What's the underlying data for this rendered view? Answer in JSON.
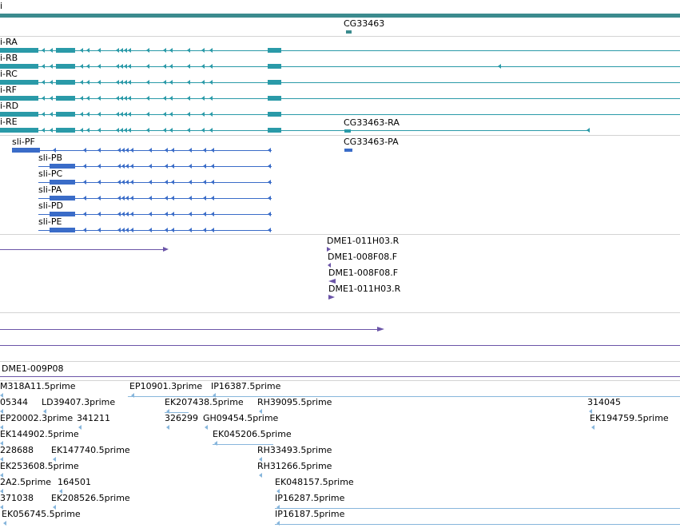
{
  "colors": {
    "teal": "#2a9aa8",
    "tealdark": "#3b8b8e",
    "blue": "#3a6cc8",
    "purple": "#6b55a8",
    "light": "#87b6dc",
    "sep": "#d3d3d3"
  },
  "gene_track": {
    "label": "i",
    "gene_name": "CG33463"
  },
  "transcripts": {
    "sli_r": [
      "i-RA",
      "i-RB",
      "i-RC",
      "i-RF",
      "i-RD",
      "i-RE"
    ],
    "cg_ra": "CG33463-RA"
  },
  "proteins": {
    "sli_p": [
      "sli-PF",
      "sli-PB",
      "sli-PC",
      "sli-PA",
      "sli-PD",
      "sli-PE"
    ],
    "cg_pa": "CG33463-PA"
  },
  "clones": [
    "DME1-011H03.R",
    "DME1-008F08.F",
    "DME1-008F08.F",
    "DME1-011H03.R"
  ],
  "clone2": "DME1-009P08",
  "ests": [
    "M318A11.5prime",
    "EP10901.3prime",
    "IP16387.5prime",
    "05344",
    "LD39407.3prime",
    "EK207438.5prime",
    "RH39095.5prime",
    "314045",
    "EP20002.3prime",
    "341211",
    "326299",
    "GH09454.5prime",
    "EK194759.5prime",
    "EK144902.5prime",
    "EK045206.5prime",
    "228688",
    "EK147740.5prime",
    "RH33493.5prime",
    "EK253608.5prime",
    "RH31266.5prime",
    "2A2.5prime",
    "164501",
    "EK048157.5prime",
    "371038",
    "EK208526.5prime",
    "IP16287.5prime",
    "EK056745.5prime",
    "IP16187.5prime"
  ]
}
